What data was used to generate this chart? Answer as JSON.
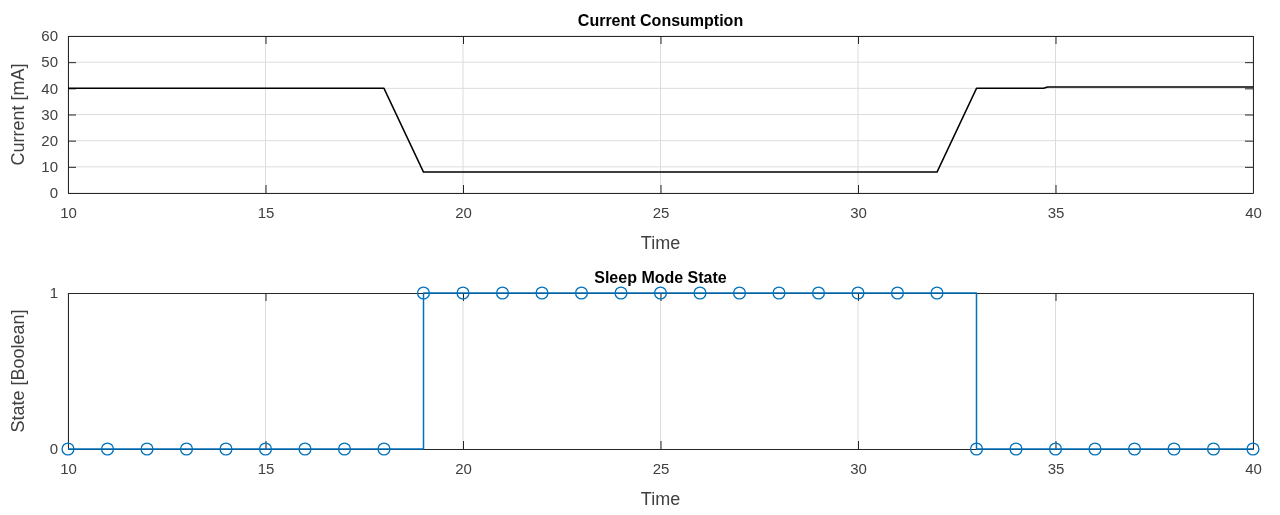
{
  "chart_data": [
    {
      "type": "line",
      "title": "Current Consumption",
      "xlabel": "Time",
      "ylabel": "Current [mA]",
      "x": [
        10,
        18,
        19,
        32,
        33,
        34.7,
        34.8,
        40
      ],
      "series": [
        {
          "color": "#000000",
          "values": [
            40,
            40,
            8,
            8,
            40,
            40,
            40.5,
            40.5
          ]
        }
      ],
      "xlim": [
        10,
        40
      ],
      "xticks": [
        10,
        15,
        20,
        25,
        30,
        35,
        40
      ],
      "ylim": [
        0,
        60
      ],
      "yticks": [
        0,
        10,
        20,
        30,
        40,
        50,
        60
      ],
      "grid": true,
      "marker": "none",
      "line_style": "solid"
    },
    {
      "type": "step",
      "title": "Sleep Mode State",
      "xlabel": "Time",
      "ylabel": "State [Boolean]",
      "x": [
        10,
        11,
        12,
        13,
        14,
        15,
        16,
        17,
        18,
        19,
        20,
        21,
        22,
        23,
        24,
        25,
        26,
        27,
        28,
        29,
        30,
        31,
        32,
        33,
        34,
        35,
        36,
        37,
        38,
        39,
        40
      ],
      "series": [
        {
          "color": "#0072bd",
          "values": [
            0,
            0,
            0,
            0,
            0,
            0,
            0,
            0,
            0,
            1,
            1,
            1,
            1,
            1,
            1,
            1,
            1,
            1,
            1,
            1,
            1,
            1,
            1,
            0,
            0,
            0,
            0,
            0,
            0,
            0,
            0
          ]
        }
      ],
      "xlim": [
        10,
        40
      ],
      "xticks": [
        10,
        15,
        20,
        25,
        30,
        35,
        40
      ],
      "ylim": [
        0,
        1
      ],
      "yticks": [
        0,
        1
      ],
      "grid": "x",
      "marker": "circle",
      "line_style": "solid"
    }
  ]
}
